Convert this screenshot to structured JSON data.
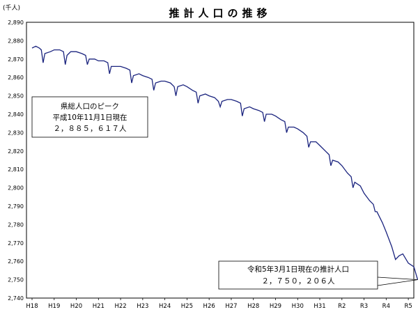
{
  "chart_data": {
    "type": "line",
    "title": "推計人口の推移",
    "ylabel": "(千人)",
    "ylim": [
      2740,
      2890
    ],
    "yticks": [
      2740,
      2750,
      2760,
      2770,
      2780,
      2790,
      2800,
      2810,
      2820,
      2830,
      2840,
      2850,
      2860,
      2870,
      2880,
      2890
    ],
    "ytick_labels": [
      "2,740",
      "2,750",
      "2,760",
      "2,770",
      "2,780",
      "2,790",
      "2,800",
      "2,810",
      "2,820",
      "2,830",
      "2,840",
      "2,850",
      "2,860",
      "2,870",
      "2,880",
      "2,890"
    ],
    "xlim": [
      0,
      17.5
    ],
    "xticks": [
      0,
      1,
      2,
      3,
      4,
      5,
      6,
      7,
      8,
      9,
      10,
      11,
      12,
      13,
      14,
      15,
      16,
      17
    ],
    "xtick_labels": [
      "H18",
      "H19",
      "H20",
      "H21",
      "H22",
      "H23",
      "H24",
      "H25",
      "H26",
      "H27",
      "H28",
      "H29",
      "H30",
      "H31",
      "R2",
      "R3",
      "R4",
      "R5"
    ],
    "grid": true,
    "series": [
      {
        "color": "#1a237e",
        "points": [
          [
            0.0,
            2876
          ],
          [
            0.17,
            2877
          ],
          [
            0.33,
            2876
          ],
          [
            0.42,
            2875
          ],
          [
            0.5,
            2868
          ],
          [
            0.58,
            2873
          ],
          [
            0.83,
            2874
          ],
          [
            1.0,
            2875
          ],
          [
            1.25,
            2875
          ],
          [
            1.42,
            2874
          ],
          [
            1.5,
            2867
          ],
          [
            1.58,
            2872
          ],
          [
            1.75,
            2874
          ],
          [
            2.0,
            2874
          ],
          [
            2.25,
            2873
          ],
          [
            2.42,
            2872
          ],
          [
            2.5,
            2867
          ],
          [
            2.58,
            2870
          ],
          [
            2.83,
            2870
          ],
          [
            3.0,
            2869
          ],
          [
            3.25,
            2869
          ],
          [
            3.42,
            2868
          ],
          [
            3.5,
            2862
          ],
          [
            3.58,
            2866
          ],
          [
            3.83,
            2866
          ],
          [
            4.0,
            2866
          ],
          [
            4.25,
            2865
          ],
          [
            4.42,
            2864
          ],
          [
            4.5,
            2857
          ],
          [
            4.58,
            2861
          ],
          [
            4.83,
            2862
          ],
          [
            5.0,
            2861
          ],
          [
            5.25,
            2860
          ],
          [
            5.42,
            2859
          ],
          [
            5.5,
            2853
          ],
          [
            5.58,
            2857
          ],
          [
            5.83,
            2858
          ],
          [
            6.0,
            2858
          ],
          [
            6.25,
            2857
          ],
          [
            6.42,
            2855
          ],
          [
            6.5,
            2850
          ],
          [
            6.58,
            2855
          ],
          [
            6.83,
            2856
          ],
          [
            7.0,
            2855
          ],
          [
            7.25,
            2853
          ],
          [
            7.42,
            2852
          ],
          [
            7.5,
            2846
          ],
          [
            7.58,
            2850
          ],
          [
            7.83,
            2851
          ],
          [
            8.0,
            2850
          ],
          [
            8.25,
            2849
          ],
          [
            8.42,
            2847
          ],
          [
            8.5,
            2844
          ],
          [
            8.58,
            2847
          ],
          [
            8.83,
            2848
          ],
          [
            9.0,
            2848
          ],
          [
            9.25,
            2847
          ],
          [
            9.42,
            2846
          ],
          [
            9.5,
            2839
          ],
          [
            9.58,
            2843
          ],
          [
            9.83,
            2844
          ],
          [
            10.0,
            2843
          ],
          [
            10.25,
            2842
          ],
          [
            10.42,
            2841
          ],
          [
            10.5,
            2836
          ],
          [
            10.58,
            2840
          ],
          [
            10.83,
            2840
          ],
          [
            11.0,
            2839
          ],
          [
            11.25,
            2837
          ],
          [
            11.42,
            2836
          ],
          [
            11.5,
            2830
          ],
          [
            11.58,
            2833
          ],
          [
            11.83,
            2833
          ],
          [
            12.0,
            2832
          ],
          [
            12.25,
            2830
          ],
          [
            12.42,
            2828
          ],
          [
            12.5,
            2822
          ],
          [
            12.58,
            2825
          ],
          [
            12.83,
            2825
          ],
          [
            13.0,
            2823
          ],
          [
            13.25,
            2820
          ],
          [
            13.42,
            2818
          ],
          [
            13.5,
            2812
          ],
          [
            13.58,
            2815
          ],
          [
            13.83,
            2814
          ],
          [
            14.0,
            2812
          ],
          [
            14.25,
            2808
          ],
          [
            14.42,
            2806
          ],
          [
            14.5,
            2800
          ],
          [
            14.58,
            2803
          ],
          [
            14.83,
            2801
          ],
          [
            15.0,
            2797
          ],
          [
            15.25,
            2793
          ],
          [
            15.42,
            2791
          ],
          [
            15.5,
            2787
          ],
          [
            15.58,
            2787
          ],
          [
            15.83,
            2781
          ],
          [
            16.0,
            2776
          ],
          [
            16.25,
            2768
          ],
          [
            16.42,
            2761
          ],
          [
            16.58,
            2763
          ],
          [
            16.75,
            2764
          ],
          [
            17.0,
            2759
          ],
          [
            17.25,
            2757
          ],
          [
            17.42,
            2750
          ]
        ]
      }
    ],
    "annotations": [
      {
        "lines": [
          "県総人口のピーク",
          "平成10年11月1日現在",
          "２，８８５，６１７人"
        ]
      },
      {
        "lines": [
          "令和5年3月1日現在の推計人口",
          "２，７５０，２０６人"
        ]
      }
    ]
  }
}
